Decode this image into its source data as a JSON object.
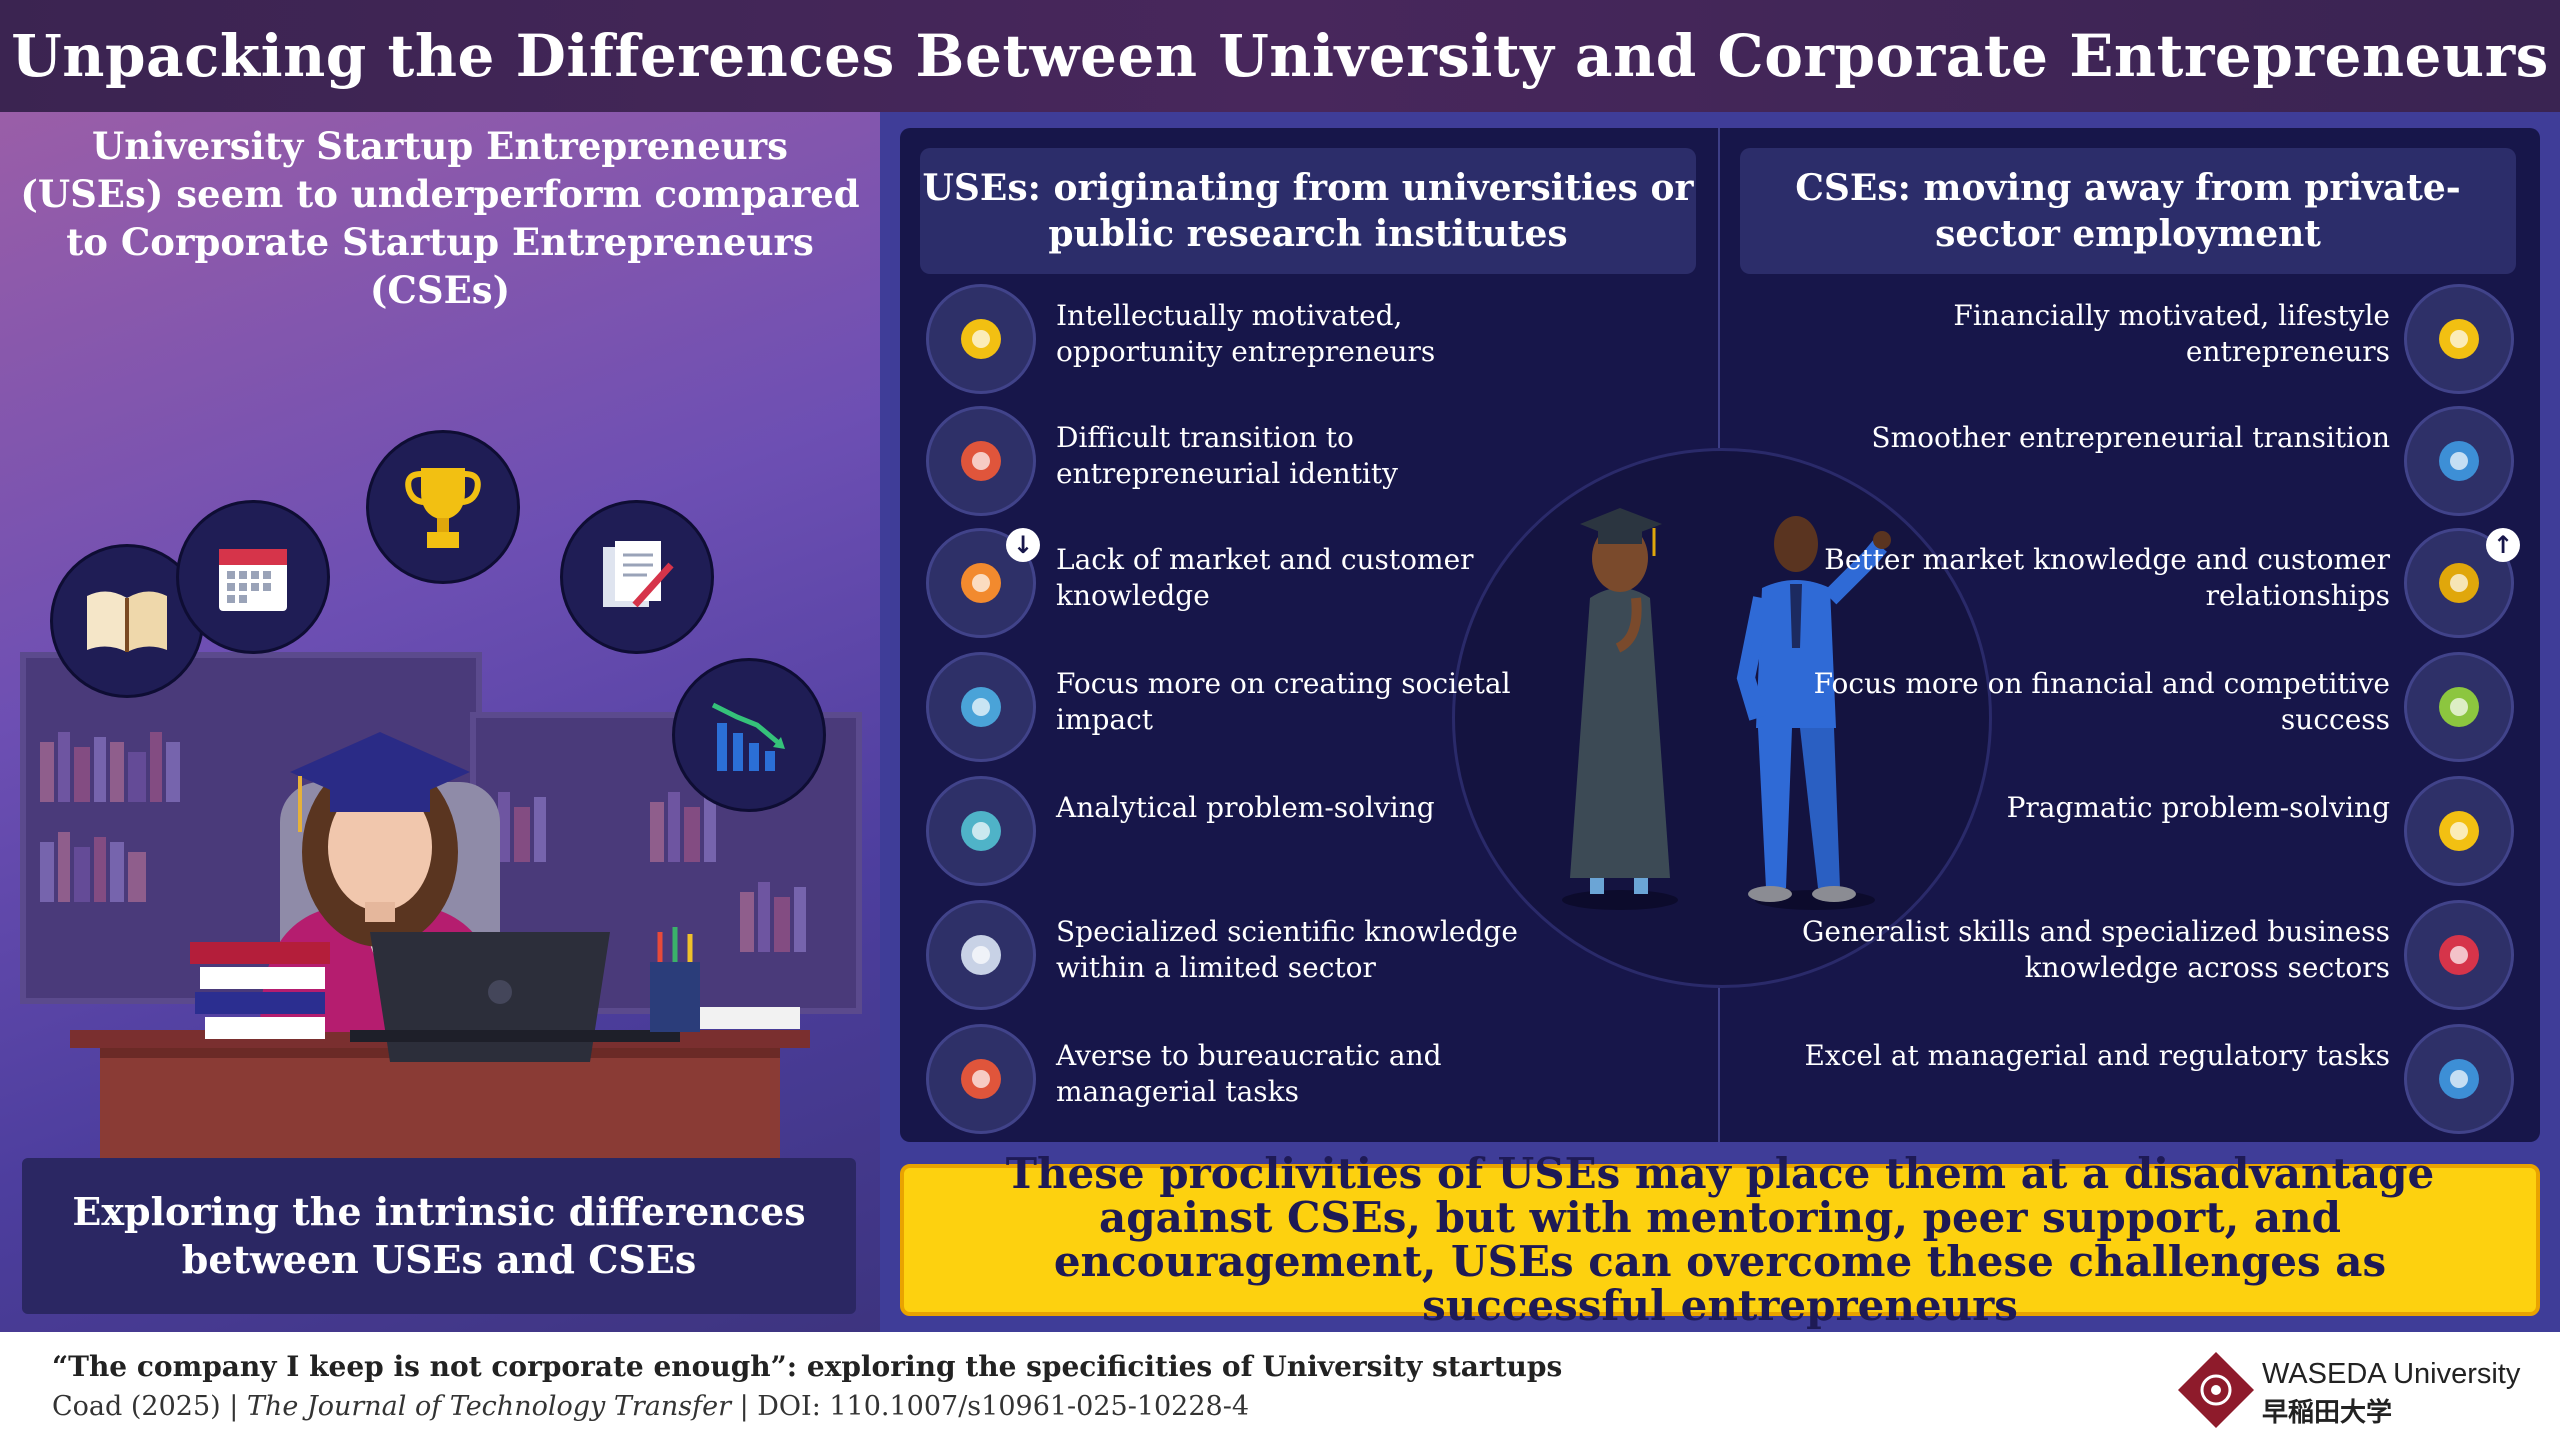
{
  "title": "Unpacking the Differences Between University and Corporate Entrepreneurs",
  "left": {
    "intro": "University Startup Entrepreneurs (USEs) seem to underperform compared to Corporate Startup Entrepreneurs (CSEs)",
    "bottom": "Exploring the intrinsic differences between USEs and CSEs",
    "icons": [
      "book-icon",
      "calendar-icon",
      "trophy-icon",
      "documents-icon",
      "declining-chart-icon"
    ]
  },
  "uses": {
    "heading": "USEs: originating from universities or public research institutes",
    "items": [
      {
        "text": "Intellectually motivated, opportunity entrepreneurs",
        "icon": "lightbulb-brain-icon"
      },
      {
        "text": "Difficult transition to entrepreneurial identity",
        "icon": "gears-person-icon"
      },
      {
        "text": "Lack of market and customer knowledge",
        "icon": "brain-chart-icon"
      },
      {
        "text": "Focus more on creating societal impact",
        "icon": "hands-together-icon"
      },
      {
        "text": "Analytical problem-solving",
        "icon": "magnifier-screen-icon"
      },
      {
        "text": "Specialized scientific knowledge within a limited sector",
        "icon": "microscope-icon"
      },
      {
        "text": "Averse to bureaucratic and managerial tasks",
        "icon": "person-gears-icon"
      }
    ]
  },
  "cses": {
    "heading": "CSEs: moving away from private-sector employment",
    "items": [
      {
        "text": "Financially motivated, lifestyle entrepreneurs",
        "icon": "money-bag-hand-icon"
      },
      {
        "text": "Smoother entrepreneurial transition",
        "icon": "briefcase-chart-icon"
      },
      {
        "text": "Better market knowledge and customer relationships",
        "icon": "presenter-icon"
      },
      {
        "text": "Focus more on financial and competitive success",
        "icon": "handshake-plant-icon"
      },
      {
        "text": "Pragmatic problem-solving",
        "icon": "lightbulb-icon"
      },
      {
        "text": "Generalist skills and specialized business knowledge across sectors",
        "icon": "tablet-chart-icon"
      },
      {
        "text": "Excel at managerial and regulatory tasks",
        "icon": "team-icon"
      }
    ]
  },
  "summary": "These proclivities of USEs may place them at a disadvantage against CSEs, but with mentoring, peer support, and encouragement, USEs can overcome these challenges as successful entrepreneurs",
  "footer": {
    "paper_title": "“The company I keep is not corporate enough”: exploring the specificities of University startups",
    "cite_prefix": "Coad (2025) | ",
    "journal": "The Journal of Technology Transfer",
    "doi": " | DOI: 110.1007/s10961-025-10228-4",
    "logo_en": "WASEDA University",
    "logo_jp": "早稲田大学"
  },
  "colors": {
    "header": "#3b2451",
    "panel": "#17164a",
    "summary_bg": "#fdd10f",
    "accent_red": "#9b1c2e"
  }
}
